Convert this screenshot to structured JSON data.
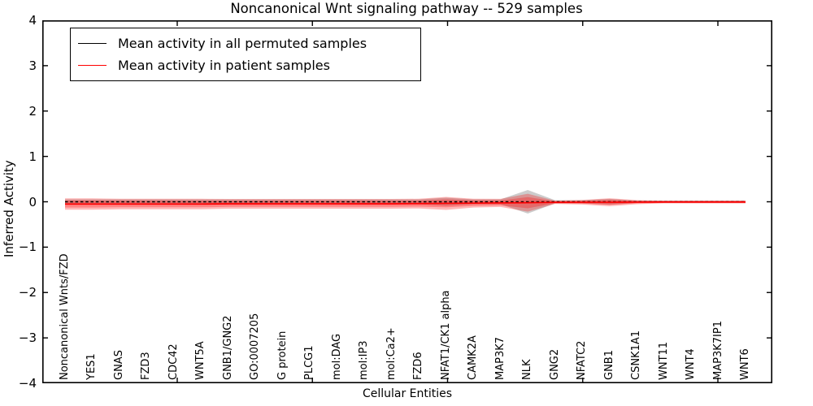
{
  "chart_data": {
    "type": "line",
    "title": "Noncanonical Wnt signaling pathway -- 529 samples",
    "xlabel": "Cellular Entities",
    "ylabel": "Inferred Activity",
    "ylim": [
      -4,
      4
    ],
    "ytick_values": [
      4,
      3,
      2,
      1,
      0,
      -1,
      -2,
      -3,
      -4
    ],
    "ytick_labels": [
      "4",
      "3",
      "2",
      "1",
      "0",
      "−1",
      "−2",
      "−3",
      "−4"
    ],
    "grid": false,
    "legend_position": "upper left",
    "categories": [
      "Noncanonical Wnts/FZD",
      "YES1",
      "GNAS",
      "FZD3",
      "CDC42",
      "WNT5A",
      "GNB1/GNG2",
      "GO:0007205",
      "G protein",
      "PLCG1",
      "mol:DAG",
      "mol:IP3",
      "mol:Ca2+",
      "FZD6",
      "NFAT1/CK1 alpha",
      "CAMK2A",
      "MAP3K7",
      "NLK",
      "GNG2",
      "NFATC2",
      "GNB1",
      "CSNK1A1",
      "WNT11",
      "WNT4",
      "MAP3K7IP1",
      "WNT6"
    ],
    "series": [
      {
        "name": "Mean activity in all permuted samples",
        "color": "#000000",
        "line_style": "dashed",
        "band_color": "#999999",
        "band_opacity": 0.5,
        "values": [
          0,
          0,
          0,
          0,
          0,
          0,
          0,
          0,
          0,
          0,
          0,
          0,
          0,
          0,
          0,
          0,
          0,
          0,
          0,
          0,
          0,
          0,
          0,
          0,
          0,
          0
        ],
        "band_halfwidth": [
          0.054,
          0.054,
          0.054,
          0.054,
          0.054,
          0.054,
          0.054,
          0.054,
          0.054,
          0.054,
          0.054,
          0.054,
          0.054,
          0.054,
          0.089,
          0.054,
          0.054,
          0.26,
          0.036,
          0.036,
          0.063,
          0.027,
          0.027,
          0.027,
          0.027,
          0.027
        ]
      },
      {
        "name": "Mean activity in patient samples",
        "color": "#ff0000",
        "line_style": "solid",
        "band_color": "#ff0000",
        "band_opacity": 0.28,
        "values": [
          -0.05,
          -0.05,
          -0.05,
          -0.05,
          -0.05,
          -0.05,
          -0.045,
          -0.045,
          -0.045,
          -0.045,
          -0.045,
          -0.045,
          -0.045,
          -0.04,
          -0.035,
          -0.03,
          -0.025,
          -0.02,
          -0.012,
          -0.01,
          -0.01,
          -0.008,
          -0.005,
          -0.005,
          -0.005,
          -0.005
        ],
        "band_halfwidth": [
          0.125,
          0.125,
          0.116,
          0.116,
          0.116,
          0.116,
          0.107,
          0.107,
          0.107,
          0.107,
          0.107,
          0.107,
          0.107,
          0.107,
          0.143,
          0.098,
          0.089,
          0.197,
          0.036,
          0.05,
          0.089,
          0.045,
          0.03,
          0.03,
          0.03,
          0.03
        ],
        "inner_band_scale": 0.62
      }
    ]
  }
}
